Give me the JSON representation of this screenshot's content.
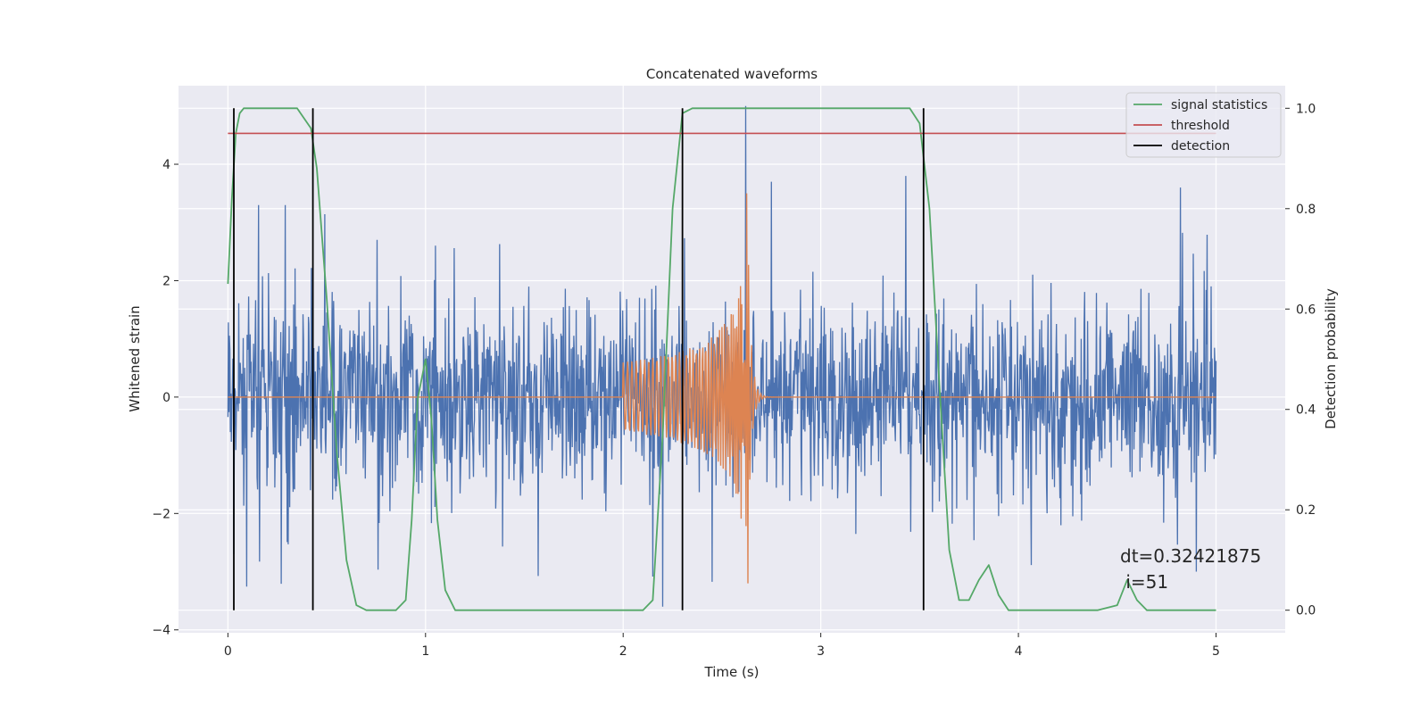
{
  "chart_data": {
    "type": "line",
    "title": "Concatenated waveforms",
    "xlabel": "Time (s)",
    "ylabel": "Whitened strain",
    "y2label": "Detection probability",
    "xlim": [
      -0.25,
      5.35
    ],
    "ylim": [
      -4.05,
      5.35
    ],
    "y2lim": [
      -0.045,
      1.045
    ],
    "xticks": [
      0,
      1,
      2,
      3,
      4,
      5
    ],
    "yticks": [
      -4,
      -2,
      0,
      2,
      4
    ],
    "y2ticks": [
      0.0,
      0.2,
      0.4,
      0.6,
      0.8,
      1.0
    ],
    "ytick_labels": [
      "−4",
      "−2",
      "0",
      "2",
      "4"
    ],
    "y2tick_labels": [
      "0.0",
      "0.2",
      "0.4",
      "0.6",
      "0.8",
      "1.0"
    ],
    "grid": true,
    "legend_position": "top-right",
    "colors": {
      "noise": "#4c72b0",
      "waveform": "#dd8452",
      "statistics": "#55a868",
      "threshold": "#c44e52",
      "detection": "#000000",
      "background": "#eaeaf2",
      "grid": "#ffffff"
    },
    "series": [
      {
        "name": "",
        "axis": "left",
        "description_kind": "noise",
        "x_range": [
          0,
          5
        ],
        "amplitude_typical": 1.2,
        "peaks": [
          {
            "x": 0.03,
            "y": -2.7
          },
          {
            "x": 1.05,
            "y": 2.6
          },
          {
            "x": 2.2,
            "y": -3.6
          },
          {
            "x": 2.62,
            "y": 5.0
          },
          {
            "x": 2.75,
            "y": 3.7
          },
          {
            "x": 3.43,
            "y": 3.8
          },
          {
            "x": 4.82,
            "y": 3.6
          },
          {
            "x": 4.9,
            "y": -3.0
          }
        ]
      },
      {
        "name": "",
        "axis": "left",
        "description_kind": "chirp",
        "x_range": [
          0,
          5
        ],
        "chirp_start": 2.0,
        "chirp_merger": 2.63,
        "amplitude_start": 0.6,
        "amplitude_peak_pos": 3.5,
        "amplitude_peak_neg": -3.2,
        "ringdown_end": 3.0
      },
      {
        "name": "signal statistics",
        "axis": "right",
        "x": [
          0.0,
          0.02,
          0.04,
          0.06,
          0.08,
          0.1,
          0.35,
          0.42,
          0.45,
          0.5,
          0.55,
          0.6,
          0.65,
          0.7,
          0.85,
          0.9,
          0.93,
          0.96,
          1.0,
          1.03,
          1.06,
          1.1,
          1.15,
          1.2,
          2.1,
          2.15,
          2.2,
          2.25,
          2.3,
          2.35,
          2.4,
          3.45,
          3.5,
          3.55,
          3.6,
          3.65,
          3.7,
          3.75,
          3.8,
          3.85,
          3.9,
          3.95,
          4.0,
          4.4,
          4.5,
          4.55,
          4.6,
          4.65,
          5.0
        ],
        "y": [
          0.65,
          0.82,
          0.95,
          0.99,
          1.0,
          1.0,
          1.0,
          0.96,
          0.88,
          0.62,
          0.32,
          0.1,
          0.01,
          0.0,
          0.0,
          0.02,
          0.18,
          0.42,
          0.5,
          0.38,
          0.18,
          0.04,
          0.0,
          0.0,
          0.0,
          0.02,
          0.35,
          0.8,
          0.99,
          1.0,
          1.0,
          1.0,
          0.97,
          0.8,
          0.45,
          0.12,
          0.02,
          0.02,
          0.06,
          0.09,
          0.03,
          0.0,
          0.0,
          0.0,
          0.01,
          0.06,
          0.02,
          0.0,
          0.0
        ]
      },
      {
        "name": "threshold",
        "axis": "right",
        "x": [
          0.0,
          5.0
        ],
        "y": [
          0.95,
          0.95
        ]
      },
      {
        "name": "detection",
        "axis": "right",
        "vlines": [
          0.03,
          0.43,
          2.3,
          3.52
        ],
        "y_range": [
          0.0,
          1.0
        ]
      }
    ],
    "annotation": {
      "line1": "dt=0.32421875",
      "line2": " i=51"
    }
  }
}
